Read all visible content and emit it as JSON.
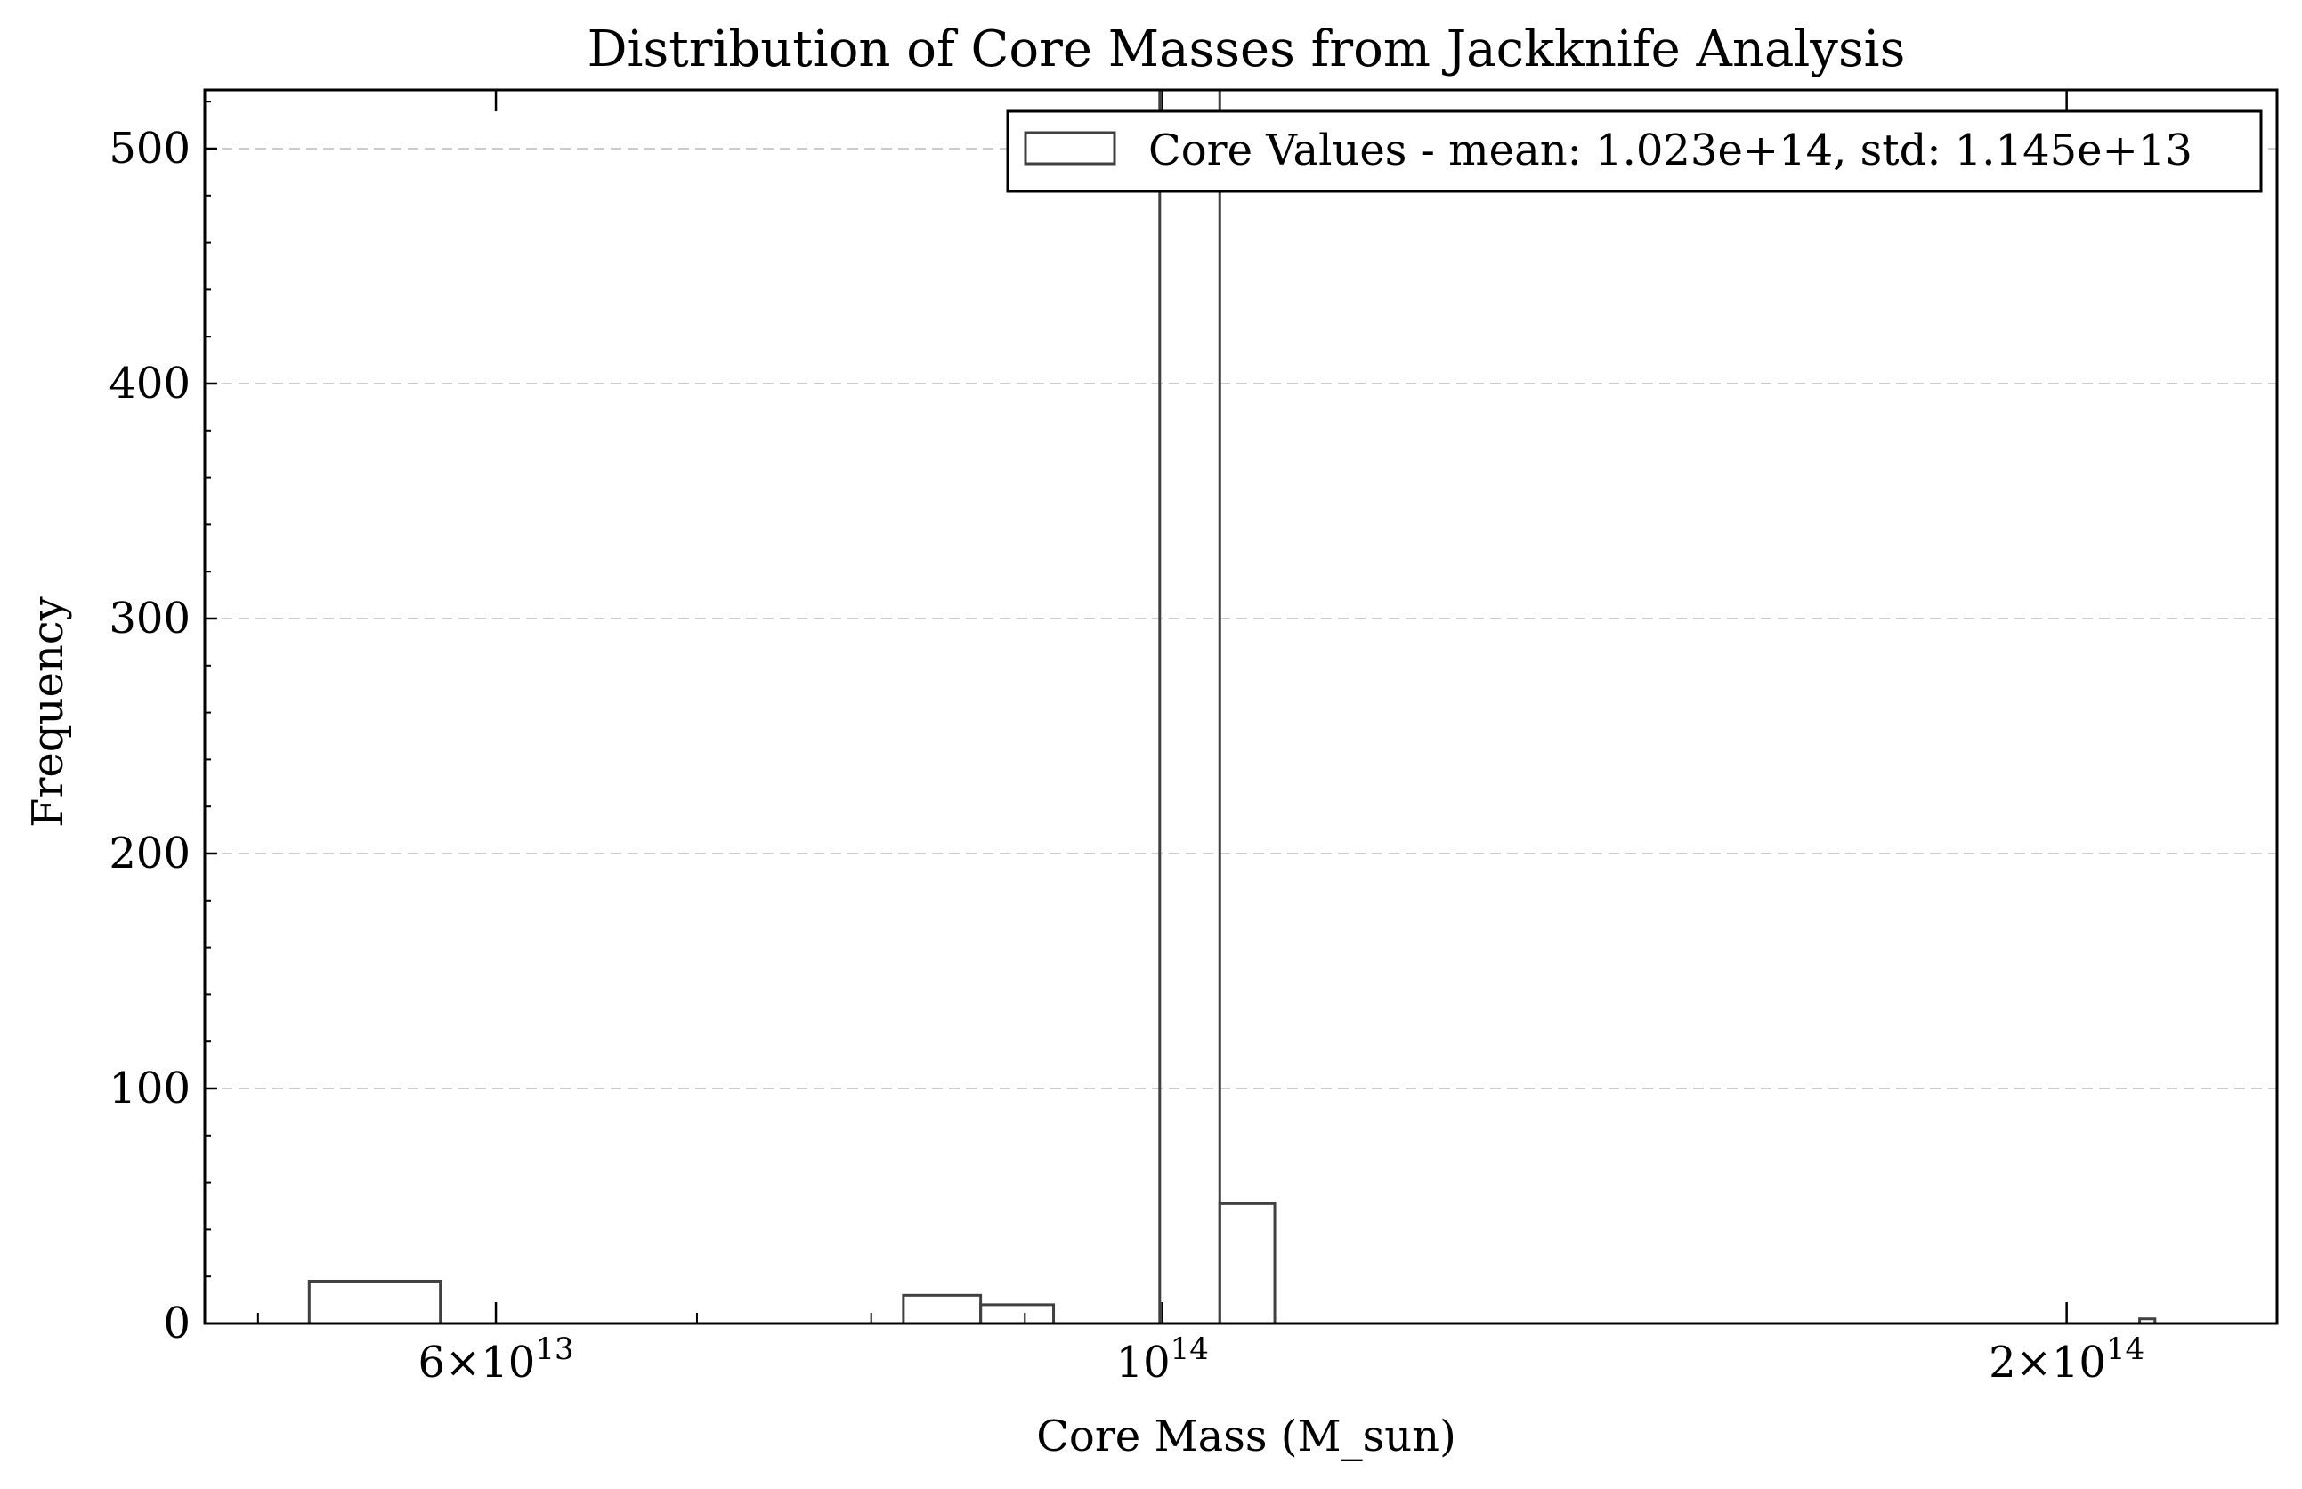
{
  "chart_data": {
    "type": "bar",
    "title": "Distribution of Core Masses from Jackknife Analysis",
    "xlabel": "Core Mass (M_sun)",
    "ylabel": "Frequency",
    "x_scale": "log",
    "xlim": [
      48000000000000.0,
      235000000000000.0
    ],
    "ylim": [
      0,
      525
    ],
    "grid": "y-dashed",
    "legend_position": "top-right",
    "x_ticks": [
      {
        "value": 60000000000000.0,
        "mantissa": "6",
        "base": "10",
        "exp": "13"
      },
      {
        "value": 100000000000000.0,
        "mantissa": "",
        "base": "10",
        "exp": "14"
      },
      {
        "value": 200000000000000.0,
        "mantissa": "2",
        "base": "10",
        "exp": "14"
      }
    ],
    "y_ticks": [
      0,
      100,
      200,
      300,
      400,
      500
    ],
    "series": [
      {
        "name": "Core Values - mean: 1.023e+14, std: 1.145e+13",
        "bins": [
          {
            "x0": 52000000000000.0,
            "x1": 57500000000000.0,
            "count": 18
          },
          {
            "x0": 82000000000000.0,
            "x1": 87000000000000.0,
            "count": 12
          },
          {
            "x0": 87000000000000.0,
            "x1": 92000000000000.0,
            "count": 8
          },
          {
            "x0": 99800000000000.0,
            "x1": 104500000000000.0,
            "count": 525
          },
          {
            "x0": 104500000000000.0,
            "x1": 109000000000000.0,
            "count": 51
          },
          {
            "x0": 211500000000000.0,
            "x1": 214000000000000.0,
            "count": 2
          }
        ]
      }
    ],
    "style": {
      "edge_color": "#404040",
      "grid_color": "#cccccc",
      "axis_color": "#000000"
    }
  }
}
